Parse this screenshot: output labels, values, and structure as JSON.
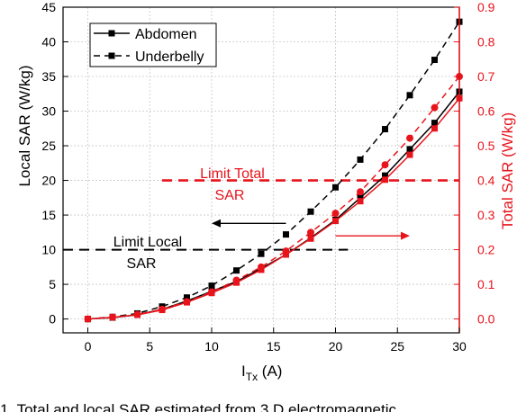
{
  "chart_data": {
    "type": "scatter",
    "x_axis": {
      "label_main": "I",
      "label_sub": "Tx",
      "label_unit": " (A)",
      "range": [
        -2,
        30
      ],
      "ticks": [
        0,
        5,
        10,
        15,
        20,
        25,
        30
      ]
    },
    "y_left": {
      "label": "Local SAR (W/kg)",
      "range": [
        -2,
        45
      ],
      "ticks": [
        0,
        5,
        10,
        15,
        20,
        25,
        30,
        35,
        40,
        45
      ]
    },
    "y_right": {
      "label": "Total SAR (W/kg)",
      "range": [
        -0.04,
        0.9
      ],
      "ticks": [
        "0.0",
        "0.1",
        "0.2",
        "0.3",
        "0.4",
        "0.5",
        "0.6",
        "0.7",
        "0.8",
        "0.9"
      ],
      "color": "#e8141c"
    },
    "grid": true,
    "legend": {
      "position": "top-left",
      "entries": [
        {
          "label": "Abdomen",
          "style": "solid"
        },
        {
          "label": "Underbelly",
          "style": "dashed"
        }
      ]
    },
    "x": [
      0,
      2,
      4,
      6,
      8,
      10,
      12,
      14,
      16,
      18,
      20,
      22,
      24,
      26,
      28,
      30
    ],
    "series": [
      {
        "name": "Abdomen",
        "axis": "left",
        "color": "#000000",
        "dash": false,
        "marker": "square",
        "values": [
          0,
          0.2,
          0.6,
          1.4,
          2.6,
          4.0,
          5.4,
          7.3,
          9.3,
          11.7,
          14.3,
          17.5,
          20.7,
          24.5,
          28.3,
          32.8
        ]
      },
      {
        "name": "Underbelly",
        "axis": "left",
        "color": "#000000",
        "dash": true,
        "marker": "square",
        "values": [
          0,
          0.3,
          0.8,
          1.8,
          3.1,
          4.8,
          7.0,
          9.4,
          12.2,
          15.5,
          19.0,
          23.0,
          27.4,
          32.3,
          37.4,
          42.9
        ]
      },
      {
        "name": "",
        "axis": "right",
        "color": "#e8141c",
        "dash": false,
        "marker": "square",
        "values": [
          0,
          0.005,
          0.012,
          0.026,
          0.048,
          0.075,
          0.105,
          0.142,
          0.186,
          0.232,
          0.283,
          0.34,
          0.402,
          0.474,
          0.55,
          0.637
        ]
      },
      {
        "name": "",
        "axis": "right",
        "color": "#e8141c",
        "dash": true,
        "marker": "circle",
        "values": [
          0,
          0.005,
          0.013,
          0.028,
          0.05,
          0.078,
          0.112,
          0.15,
          0.196,
          0.25,
          0.305,
          0.367,
          0.445,
          0.522,
          0.61,
          0.7
        ]
      }
    ],
    "annotations": [
      {
        "text_lines": [
          "Limit Total",
          "SAR"
        ],
        "color": "#e8141c"
      },
      {
        "text_lines": [
          "Limit Local",
          "SAR"
        ],
        "color": "#000000"
      }
    ],
    "limits": [
      {
        "axis": "left",
        "value": 10,
        "x_from": -2,
        "x_to": 21,
        "color": "#000000"
      },
      {
        "axis": "right",
        "value": 0.4,
        "x_from": 6,
        "x_to": 30,
        "color": "#e8141c"
      }
    ],
    "arrows": [
      {
        "x_from": 16,
        "x_to": 10,
        "axis": "left",
        "y": 13.8,
        "color": "#000000"
      },
      {
        "x_from": 20,
        "x_to": 26,
        "axis": "right",
        "y": 0.24,
        "color": "#e8141c"
      }
    ]
  },
  "caption": "1.  Total and local SAR estimated from 3 D electromagnetic"
}
